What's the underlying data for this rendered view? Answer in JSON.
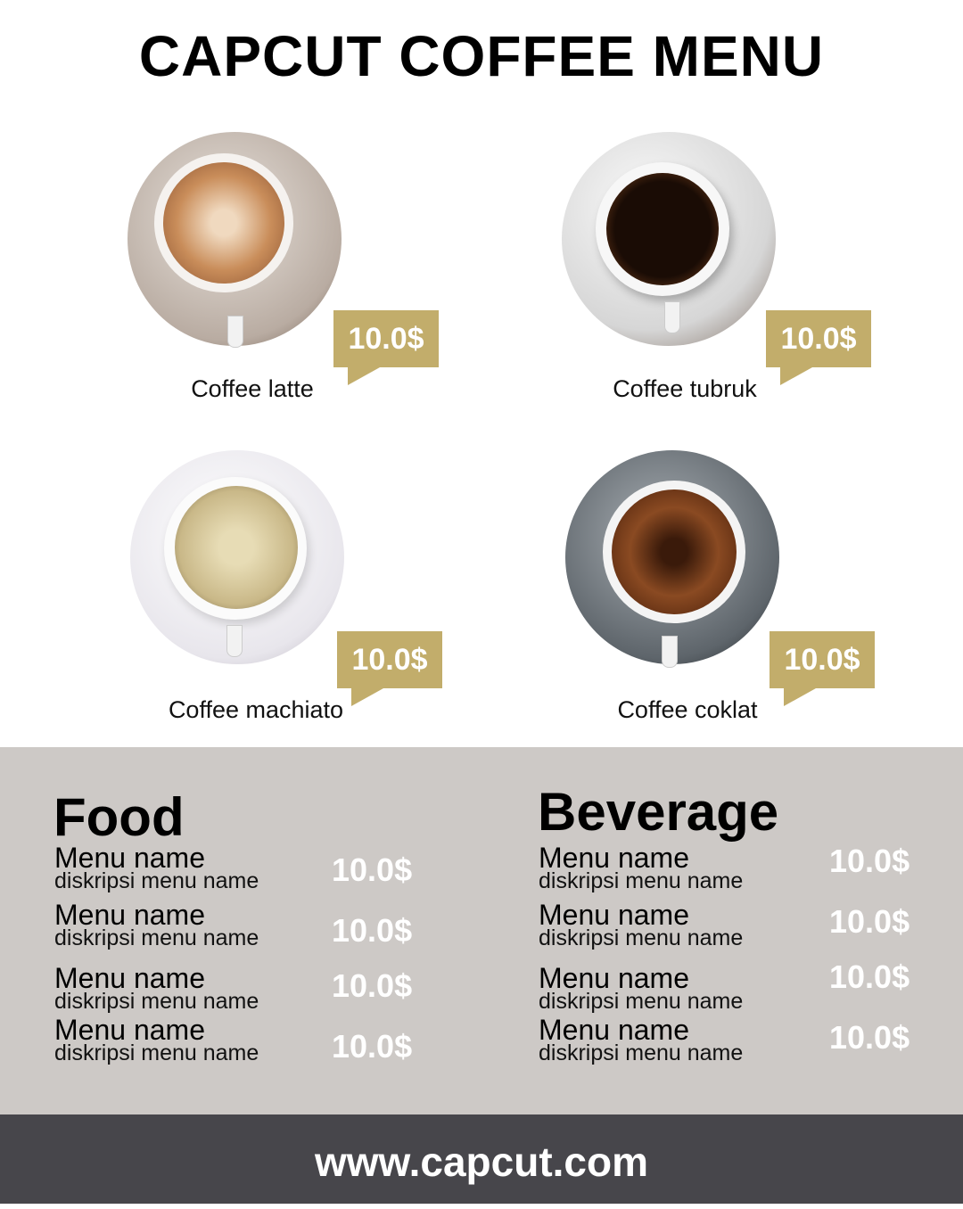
{
  "title": "CAPCUT COFFEE MENU",
  "colors": {
    "accent": "#c2ad6b",
    "band": "#cdc9c6",
    "footer": "#47464b"
  },
  "products": [
    {
      "name": "Coffee latte",
      "price": "10.0$"
    },
    {
      "name": "Coffee tubruk",
      "price": "10.0$"
    },
    {
      "name": "Coffee machiato",
      "price": "10.0$"
    },
    {
      "name": "Coffee coklat",
      "price": "10.0$"
    }
  ],
  "food": {
    "heading": "Food",
    "items": [
      {
        "name": "Menu name",
        "desc": "diskripsi menu name",
        "price": "10.0$"
      },
      {
        "name": "Menu name",
        "desc": "diskripsi menu name",
        "price": "10.0$"
      },
      {
        "name": "Menu name",
        "desc": "diskripsi menu name",
        "price": "10.0$"
      },
      {
        "name": "Menu name",
        "desc": "diskripsi menu name",
        "price": "10.0$"
      }
    ]
  },
  "beverage": {
    "heading": "Beverage",
    "items": [
      {
        "name": "Menu name",
        "desc": "diskripsi menu name",
        "price": "10.0$"
      },
      {
        "name": "Menu name",
        "desc": "diskripsi menu name",
        "price": "10.0$"
      },
      {
        "name": "Menu name",
        "desc": "diskripsi menu name",
        "price": "10.0$"
      },
      {
        "name": "Menu name",
        "desc": "diskripsi menu name",
        "price": "10.0$"
      }
    ]
  },
  "footer": {
    "url": "www.capcut.com"
  }
}
